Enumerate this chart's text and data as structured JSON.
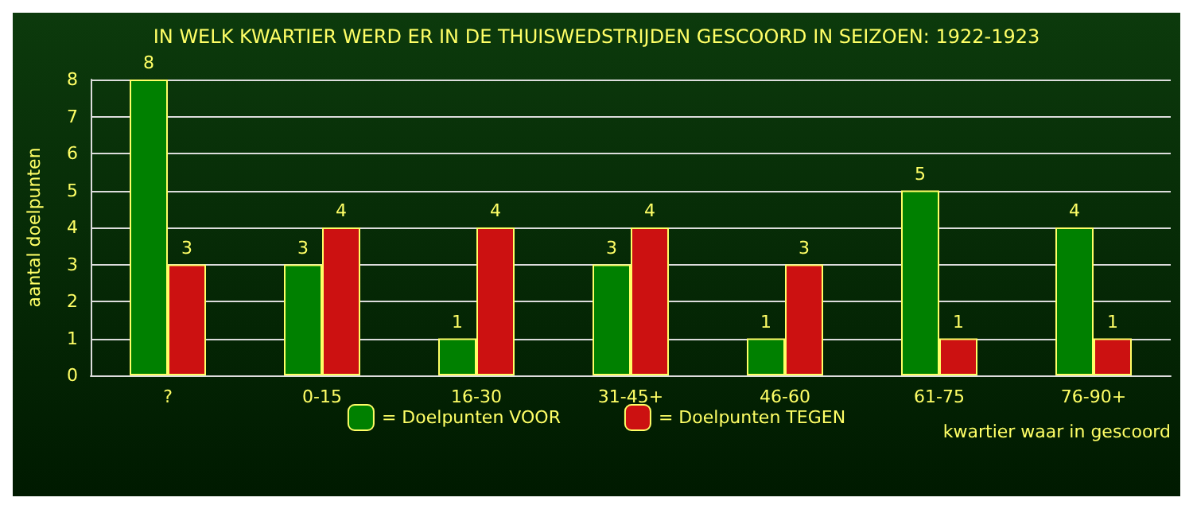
{
  "chart_data": {
    "type": "bar",
    "title": "IN WELK KWARTIER WERD ER IN DE THUISWEDSTRIJDEN GESCOORD IN SEIZOEN: 1922-1923",
    "categories": [
      "?",
      "0-15",
      "16-30",
      "31-45+",
      "46-60",
      "61-75",
      "76-90+"
    ],
    "series": [
      {
        "name": "= Doelpunten VOOR",
        "color": "#008000",
        "values": [
          8,
          3,
          1,
          3,
          1,
          5,
          4
        ]
      },
      {
        "name": "= Doelpunten TEGEN",
        "color": "#cc1111",
        "values": [
          3,
          4,
          4,
          4,
          3,
          1,
          1
        ]
      }
    ],
    "ylabel": "aantal doelpunten",
    "xlabel": "kwartier waar in gescoord",
    "ylim": [
      0,
      8
    ],
    "yticks": [
      0,
      1,
      2,
      3,
      4,
      5,
      6,
      7,
      8
    ],
    "grid": "y",
    "legend": "bottom",
    "data_labels": true
  }
}
